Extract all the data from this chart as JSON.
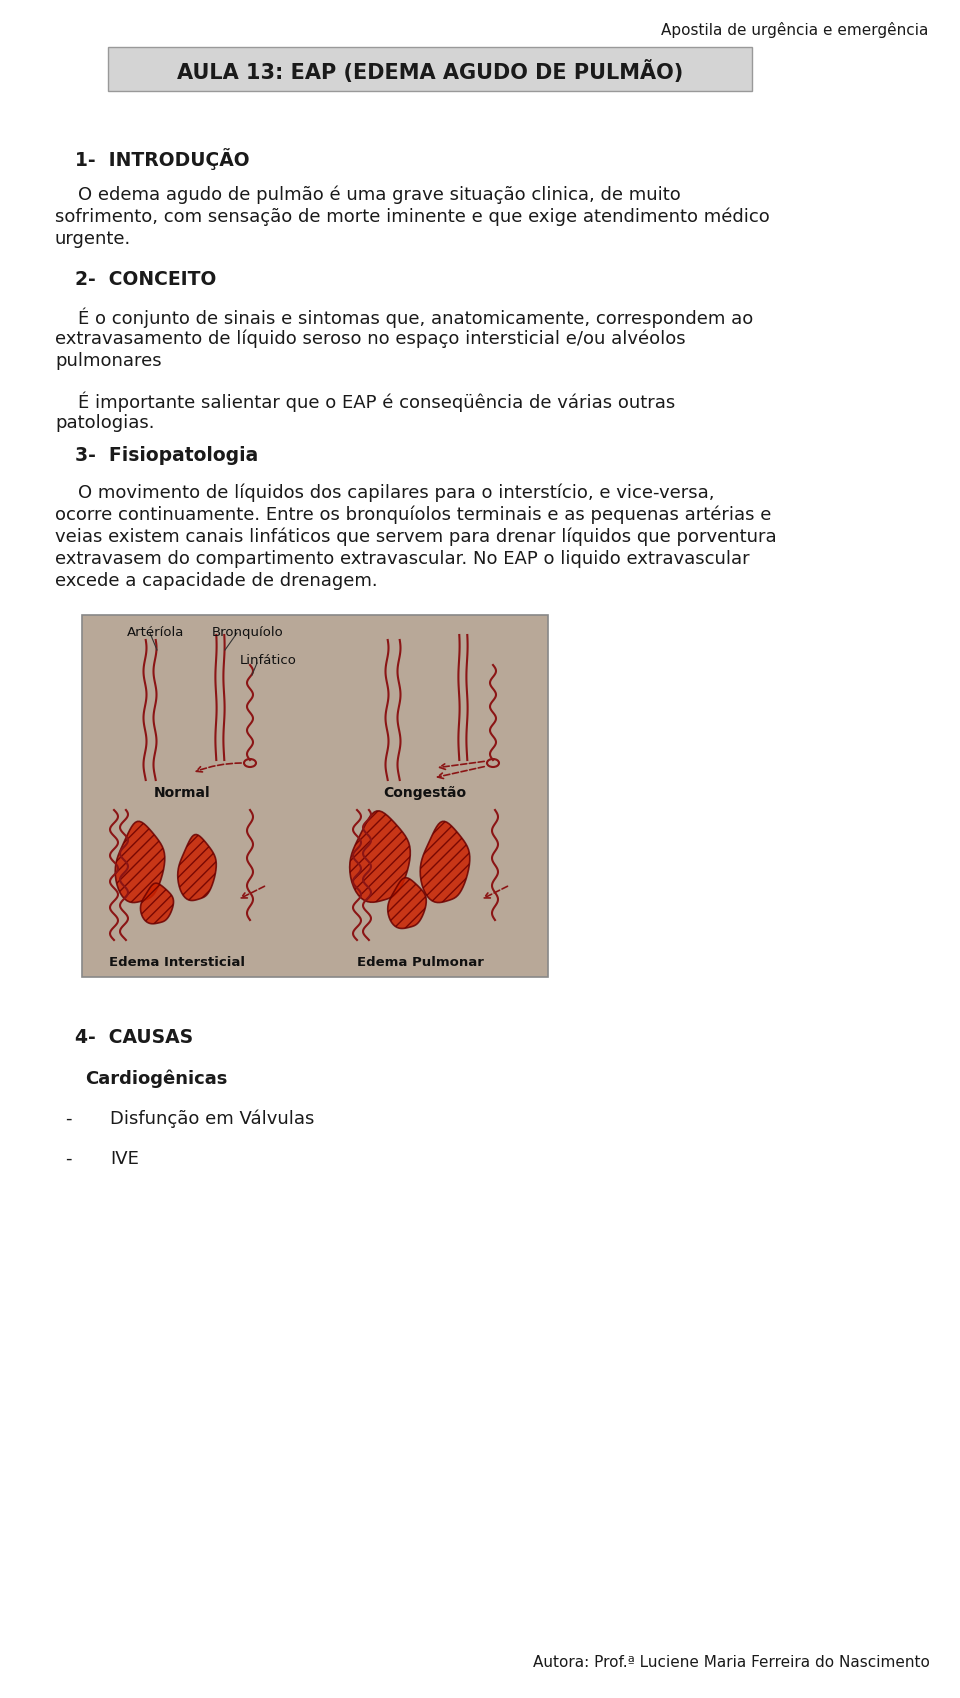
{
  "background_color": "#ffffff",
  "page_width": 9.6,
  "page_height": 16.99,
  "dpi": 100,
  "header_text": "Apostila de urgência e emergência",
  "title_box_text": "AULA 13: EAP (EDEMA AGUDO DE PULMÃO)",
  "title_box_bg": "#d4d4d4",
  "title_box_border": "#999999",
  "section1_heading": "1-  INTRODUÇÃO",
  "section1_indent": "    O edema agudo de pulmão é uma grave situação clinica, de muito sofrimento, com sensação de morte iminente e que exige atendimento médico urgente.",
  "section2_heading": "2-  CONCEITO",
  "section2_body1": "    É o conjunto de sinais e sintomas que, anatomicamente, correspondem ao extravasamento de líquido seroso no espaço intersticial e/ou alvéolos pulmonares",
  "section2_body2": "    É importante salientar que o EAP é conseqüência de várias outras patologias.",
  "section3_heading": "3-  Fisiopatologia",
  "section3_body": "    O movimento de líquidos dos capilares para o interstício, e vice-versa, ocorre continuamente. Entre os bronquíolos terminais e as pequenas artérias e veias existem canais linfáticos que servem para drenar líquidos que porventura extravasem do compartimento extravascular. No EAP o liquido extravascular excede a capacidade de drenagem.",
  "section4_heading": "4-  CAUSAS",
  "section4_sub": "Cardiogênicas",
  "section4_item1": "Disfunção em Válvulas",
  "section4_item2": "IVE",
  "footer_text": "Autora: Prof.ª Luciene Maria Ferreira do Nascimento",
  "text_color": "#1a1a1a",
  "body_fontsize": 13.0,
  "heading_fontsize": 13.5,
  "title_fontsize": 15.0,
  "header_fontsize": 11.0,
  "img_bg_color": "#b8a898",
  "img_border_color": "#888888",
  "vessel_color": "#8b1515",
  "img_label_fontsize": 9.5,
  "img_sublabel_fontsize": 10.0
}
